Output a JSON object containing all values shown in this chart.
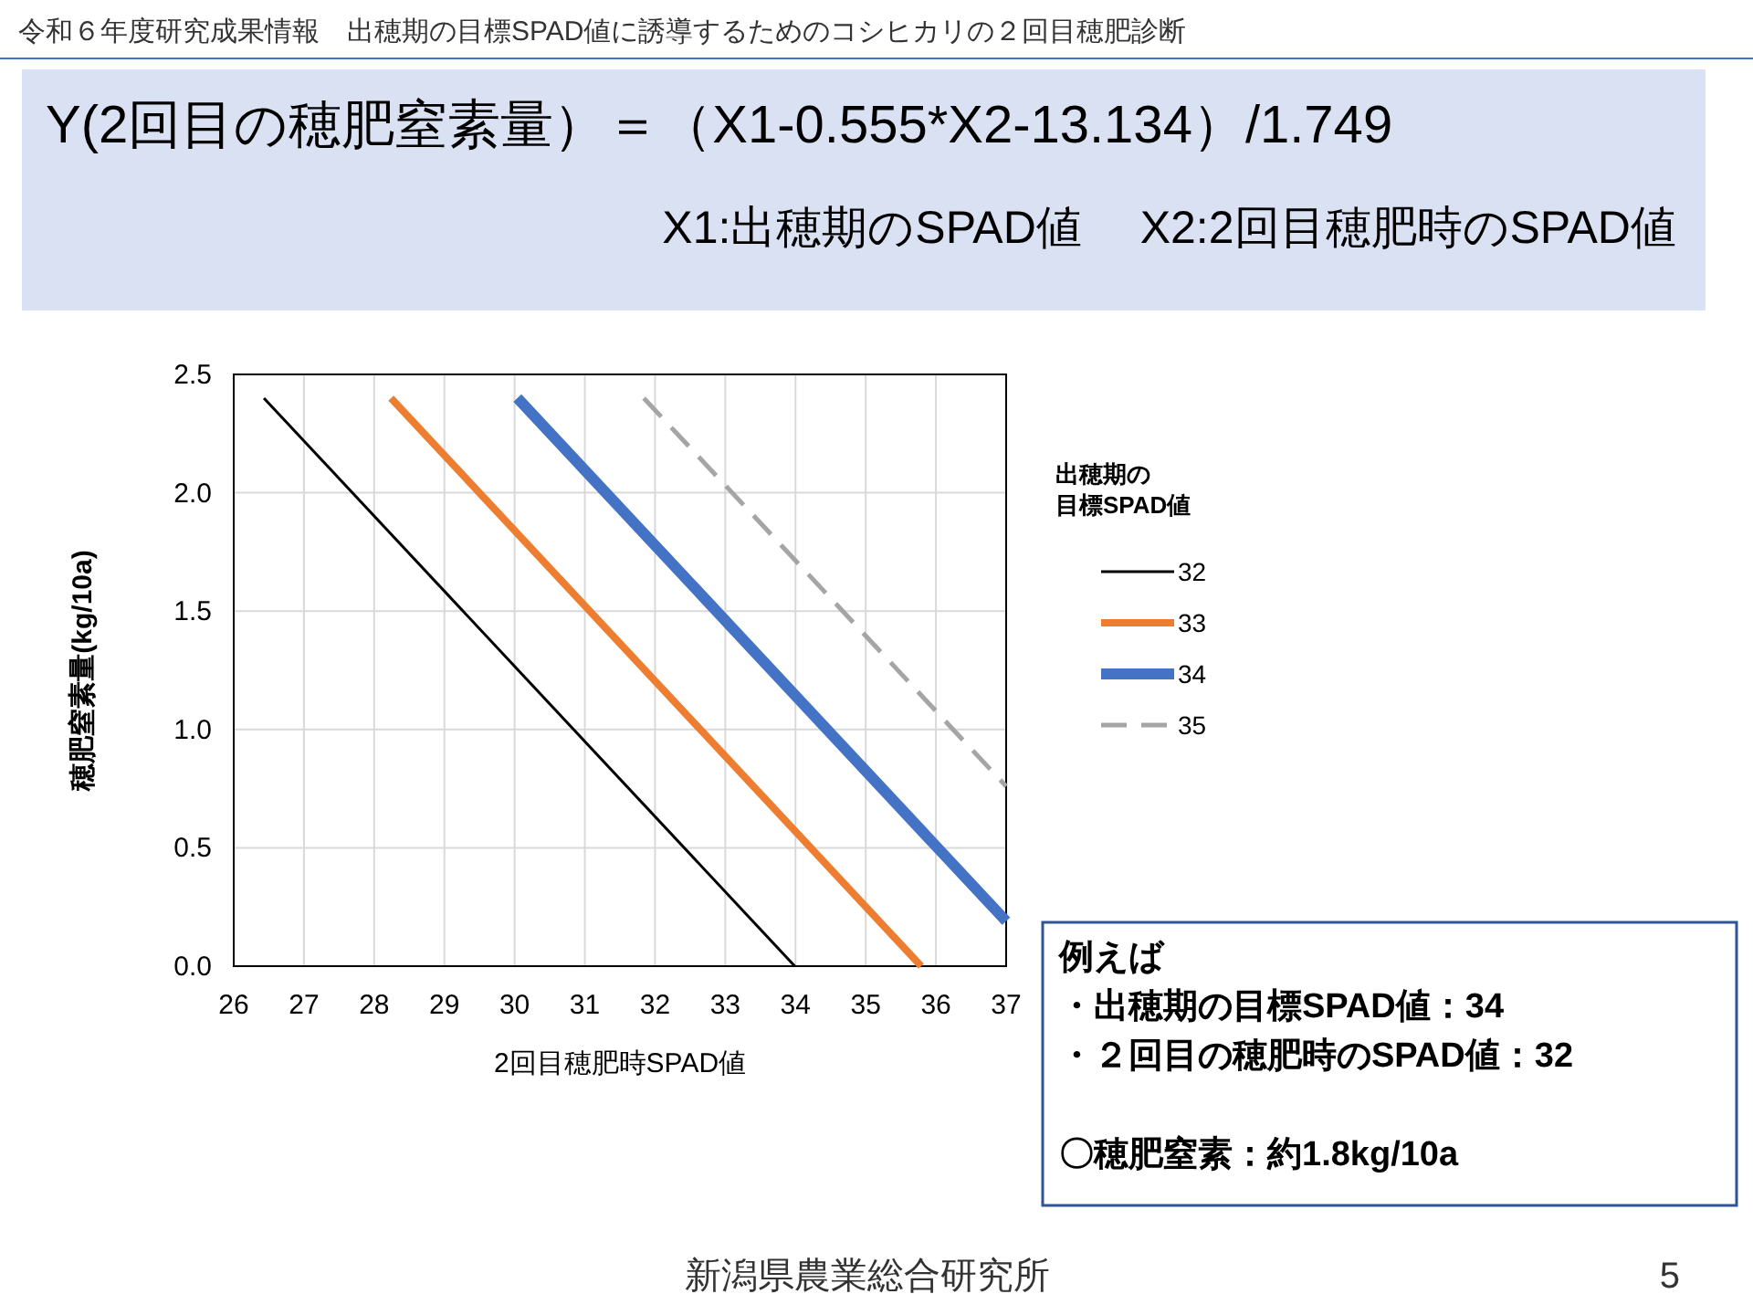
{
  "chart_data": {
    "type": "line",
    "title": "令和６年度研究成果情報　出穂期の目標SPAD値に誘導するためのコシヒカリの２回目穂肥診断",
    "subtitle": "Y(2回目の穂肥窒素量）＝（X1-0.555*X2-13.134）/1.749",
    "xlabel": "2回目穂肥時SPAD値",
    "ylabel": "穂肥窒素量(kg/10a)",
    "legend_title": "出穂期の目標SPAD値",
    "legend": "right",
    "grid": true,
    "xlim": [
      26,
      37
    ],
    "xticks": [
      26,
      27,
      28,
      29,
      30,
      31,
      32,
      33,
      34,
      35,
      36,
      37
    ],
    "ylim": [
      0,
      2.5
    ],
    "yticks": [
      {
        "value": 0,
        "label": "0.0"
      },
      {
        "value": 0.5,
        "label": "0.5"
      },
      {
        "value": 1,
        "label": "1.0"
      },
      {
        "value": 1.5,
        "label": "1.5"
      },
      {
        "value": 2,
        "label": "2.0"
      },
      {
        "value": 2.5,
        "label": "2.5"
      }
    ],
    "series": [
      {
        "name": "32",
        "color": "#000000",
        "line_style": "solid",
        "x": [
          26.43,
          33.99
        ],
        "values": [
          2.4,
          0
        ]
      },
      {
        "name": "33",
        "color": "#ed7d31",
        "line_style": "solid",
        "x": [
          28.24,
          35.79
        ],
        "values": [
          2.4,
          0
        ]
      },
      {
        "name": "34",
        "color": "#4472c4",
        "line_style": "solid",
        "x": [
          30.04,
          37
        ],
        "values": [
          2.4,
          0.19
        ]
      },
      {
        "name": "35",
        "color": "#a5a5a5",
        "line_style": "dashed",
        "x": [
          31.84,
          37
        ],
        "values": [
          2.4,
          0.76
        ]
      }
    ],
    "annotations": [
      "X1:出穂期のSPAD値　 X2:2回目穂肥時のSPAD値",
      "例えば",
      "・出穂期の目標SPAD値：34",
      "・２回目の穂肥時のSPAD値：32",
      "〇穂肥窒素：約1.8kg/10a",
      "新潟県農業総合研究所",
      "5"
    ]
  }
}
